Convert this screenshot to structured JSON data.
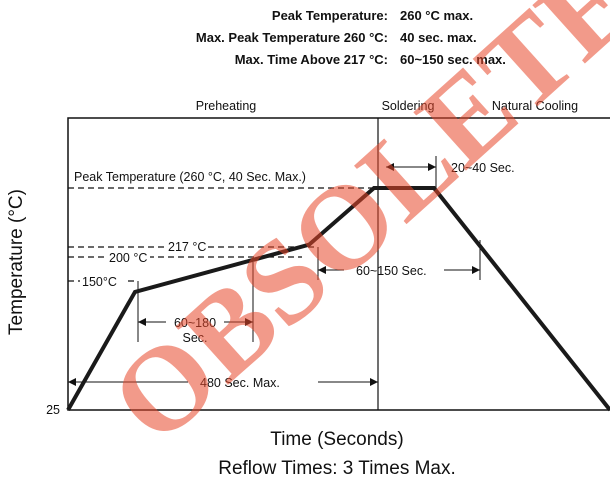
{
  "header": {
    "peak_label": "Peak Temperature:",
    "peak_value": "260 °C max.",
    "maxpeak_label": "Max. Peak Temperature 260 °C:",
    "maxpeak_value": "40 sec. max.",
    "above_label": "Max. Time Above 217 °C:",
    "above_value": "60~150 sec. max."
  },
  "phases": {
    "preheating": "Preheating",
    "soldering": "Soldering",
    "cooling": "Natural Cooling"
  },
  "watermark": "OBSOLETE",
  "colors": {
    "curve": "#1a1a1a",
    "watermark": "#e8472a",
    "grid": "#111111"
  },
  "chart_data": {
    "type": "line",
    "xlabel": "Time (Seconds)",
    "ylabel": "Temperature (°C)",
    "footer": "Reflow Times: 3 Times Max.",
    "y_tick": "25",
    "profile": {
      "x_unit": "relative time",
      "points": [
        {
          "t": 0,
          "temp": 25
        },
        {
          "t": 67,
          "temp": 150
        },
        {
          "t": 241,
          "temp": 200
        },
        {
          "t": 306,
          "temp": 260
        },
        {
          "t": 366,
          "temp": 260
        },
        {
          "t": 542,
          "temp": 25
        }
      ]
    },
    "reference_levels": [
      {
        "label": "Peak Temperature (260 °C, 40 Sec. Max.)",
        "temp": 260
      },
      {
        "label": "217 °C",
        "temp": 217
      },
      {
        "label": "200 °C",
        "temp": 200
      },
      {
        "label": "150°C",
        "temp": 150
      }
    ],
    "annotations": [
      {
        "label": "20~40 Sec."
      },
      {
        "label": "60~150 Sec."
      },
      {
        "label_line1": "60~180",
        "label_line2": "Sec."
      },
      {
        "label": "480 Sec. Max."
      }
    ]
  }
}
